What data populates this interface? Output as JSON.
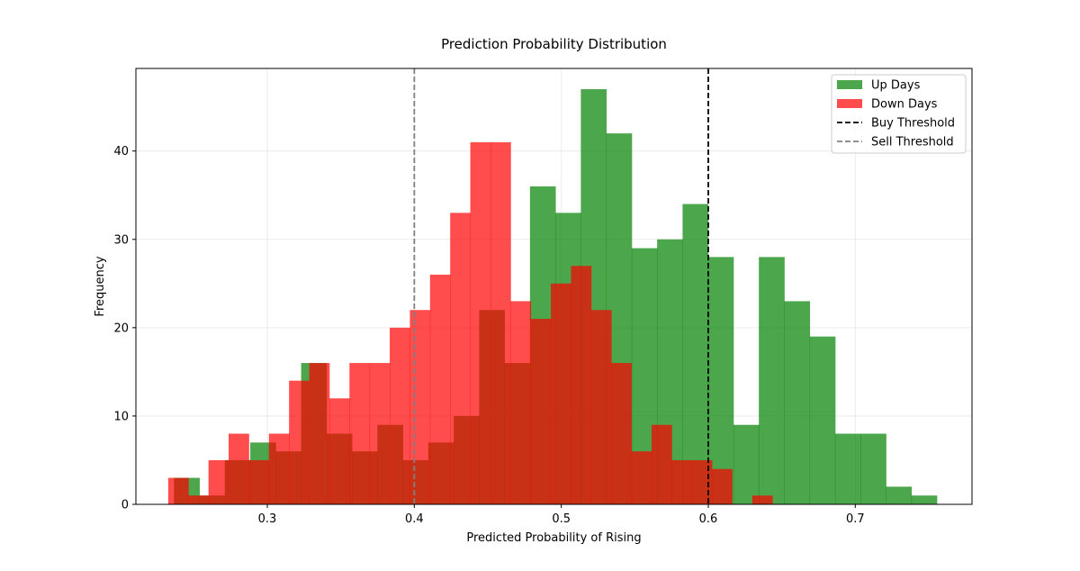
{
  "chart_data": {
    "type": "bar",
    "title": "Prediction Probability Distribution",
    "xlabel": "Predicted Probability of Rising",
    "ylabel": "Frequency",
    "xlim": [
      0.2106,
      0.7794
    ],
    "ylim": [
      0,
      49.35
    ],
    "x_ticks": [
      0.3,
      0.4,
      0.5,
      0.6,
      0.7
    ],
    "x_tick_labels": [
      "0.3",
      "0.4",
      "0.5",
      "0.6",
      "0.7"
    ],
    "y_ticks": [
      0,
      10,
      20,
      30,
      40
    ],
    "y_tick_labels": [
      "0",
      "10",
      "20",
      "30",
      "40"
    ],
    "grid": true,
    "legend_position": "top-right",
    "series": [
      {
        "name": "Up Days",
        "color": "#008000",
        "opacity": 0.7,
        "bin_width": 0.0173,
        "bins_start": [
          0.2365,
          0.2538,
          0.2711,
          0.2884,
          0.3057,
          0.323,
          0.3403,
          0.3576,
          0.3749,
          0.3922,
          0.4095,
          0.4268,
          0.4441,
          0.4614,
          0.4787,
          0.496,
          0.5133,
          0.5306,
          0.5479,
          0.5652,
          0.5825,
          0.5998,
          0.6171,
          0.6344,
          0.6517,
          0.669,
          0.6863,
          0.7036,
          0.7209,
          0.7382
        ],
        "values": [
          3,
          1,
          5,
          7,
          6,
          16,
          8,
          6,
          9,
          5,
          7,
          10,
          22,
          16,
          36,
          33,
          47,
          42,
          29,
          30,
          34,
          28,
          9,
          28,
          23,
          19,
          8,
          8,
          2,
          1
        ]
      },
      {
        "name": "Down Days",
        "color": "#ff0000",
        "opacity": 0.7,
        "bin_width": 0.0137,
        "bins_start": [
          0.2326,
          0.2463,
          0.26,
          0.2737,
          0.2874,
          0.3011,
          0.3148,
          0.3285,
          0.3422,
          0.3559,
          0.3696,
          0.3833,
          0.397,
          0.4107,
          0.4244,
          0.4381,
          0.4518,
          0.4655,
          0.4792,
          0.4929,
          0.5066,
          0.5203,
          0.534,
          0.5477,
          0.5614,
          0.5751,
          0.5888,
          0.6025,
          0.6162,
          0.6299
        ],
        "values": [
          3,
          1,
          5,
          8,
          5,
          8,
          14,
          16,
          12,
          16,
          16,
          20,
          22,
          26,
          33,
          41,
          41,
          23,
          21,
          25,
          27,
          22,
          16,
          6,
          9,
          5,
          5,
          4,
          0,
          1
        ]
      }
    ],
    "thresholds": [
      {
        "name": "Buy Threshold",
        "x": 0.6,
        "color": "#000000",
        "dash": "dashed"
      },
      {
        "name": "Sell Threshold",
        "x": 0.4,
        "color": "#808080",
        "dash": "dashed"
      }
    ]
  }
}
